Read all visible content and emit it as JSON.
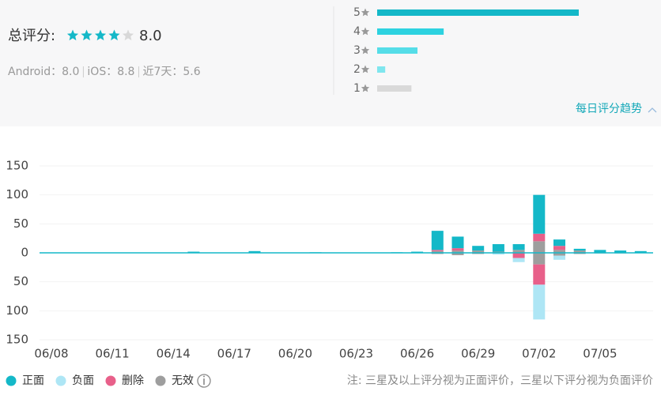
{
  "summary": {
    "title": "总评分:",
    "score": "8.0",
    "star_count": 5,
    "stars_filled": 4,
    "platform_scores": [
      "Android：8.0",
      "iOS：8.8",
      "近7天：5.6"
    ],
    "ratings": [
      {
        "label": "5",
        "value": 100,
        "color": "#14b8c8"
      },
      {
        "label": "4",
        "value": 33,
        "color": "#2dd2e0"
      },
      {
        "label": "3",
        "value": 20,
        "color": "#55dde8"
      },
      {
        "label": "2",
        "value": 4,
        "color": "#7fe6ee"
      },
      {
        "label": "1",
        "value": 17,
        "color": "#d9d9d9"
      }
    ],
    "ratings_xlim": [
      0,
      100
    ],
    "trend_link": "每日评分趋势"
  },
  "chart_data": {
    "type": "bar",
    "stacked": true,
    "categories": [
      "06/08",
      null,
      null,
      "06/11",
      null,
      null,
      "06/14",
      null,
      null,
      "06/17",
      null,
      null,
      "06/20",
      null,
      null,
      "06/23",
      null,
      null,
      "06/26",
      null,
      null,
      "06/29",
      null,
      null,
      "07/02",
      null,
      null,
      "07/05",
      null,
      null
    ],
    "series": [
      {
        "name": "正面",
        "color": "#14b8c8",
        "values": [
          0,
          0,
          0,
          0,
          0,
          0,
          0,
          2,
          0,
          0,
          3,
          0,
          0,
          1,
          0,
          0,
          0,
          1,
          2,
          33,
          20,
          8,
          13,
          10,
          67,
          11,
          3,
          5,
          4,
          3
        ]
      },
      {
        "name": "负面",
        "color": "#aee6f5",
        "values": [
          0,
          0,
          0,
          0,
          0,
          0,
          0,
          0,
          0,
          0,
          0,
          0,
          0,
          0,
          0,
          0,
          0,
          0,
          0,
          0,
          0,
          0,
          -3,
          -7,
          -60,
          -7,
          0,
          0,
          0,
          0
        ]
      },
      {
        "name": "删除",
        "color": "#e8608a",
        "values": [
          0,
          0,
          0,
          0,
          0,
          0,
          0,
          0,
          0,
          0,
          0,
          0,
          0,
          0,
          0,
          0,
          0,
          0,
          0,
          2,
          4,
          0,
          0,
          0,
          13,
          7,
          0,
          0,
          0,
          0
        ],
        "negative_values": [
          0,
          0,
          0,
          0,
          0,
          0,
          0,
          0,
          0,
          0,
          0,
          0,
          0,
          0,
          0,
          0,
          0,
          0,
          0,
          0,
          0,
          0,
          0,
          -9,
          -35,
          0,
          0,
          0,
          0,
          0
        ]
      },
      {
        "name": "无效",
        "color": "#9e9e9e",
        "values": [
          0,
          0,
          0,
          0,
          0,
          0,
          0,
          0,
          0,
          0,
          0,
          0,
          0,
          0,
          0,
          0,
          0,
          0,
          0,
          3,
          4,
          4,
          2,
          5,
          20,
          5,
          4,
          0,
          0,
          0
        ],
        "negative_values": [
          0,
          0,
          0,
          0,
          0,
          0,
          0,
          0,
          0,
          0,
          0,
          0,
          0,
          0,
          0,
          0,
          0,
          0,
          0,
          -2,
          -4,
          -2,
          0,
          0,
          -20,
          -5,
          -2,
          -1,
          -1,
          0
        ]
      }
    ],
    "ylim": [
      -150,
      150
    ],
    "yticks": [
      150,
      100,
      50,
      0,
      {
        "value": -50,
        "label": "50"
      },
      {
        "value": -100,
        "label": "100"
      },
      {
        "value": -150,
        "label": "150"
      }
    ],
    "grid": true,
    "note": "注: 三星及以上评分视为正面评价，三星以下评分视为负面评价"
  }
}
